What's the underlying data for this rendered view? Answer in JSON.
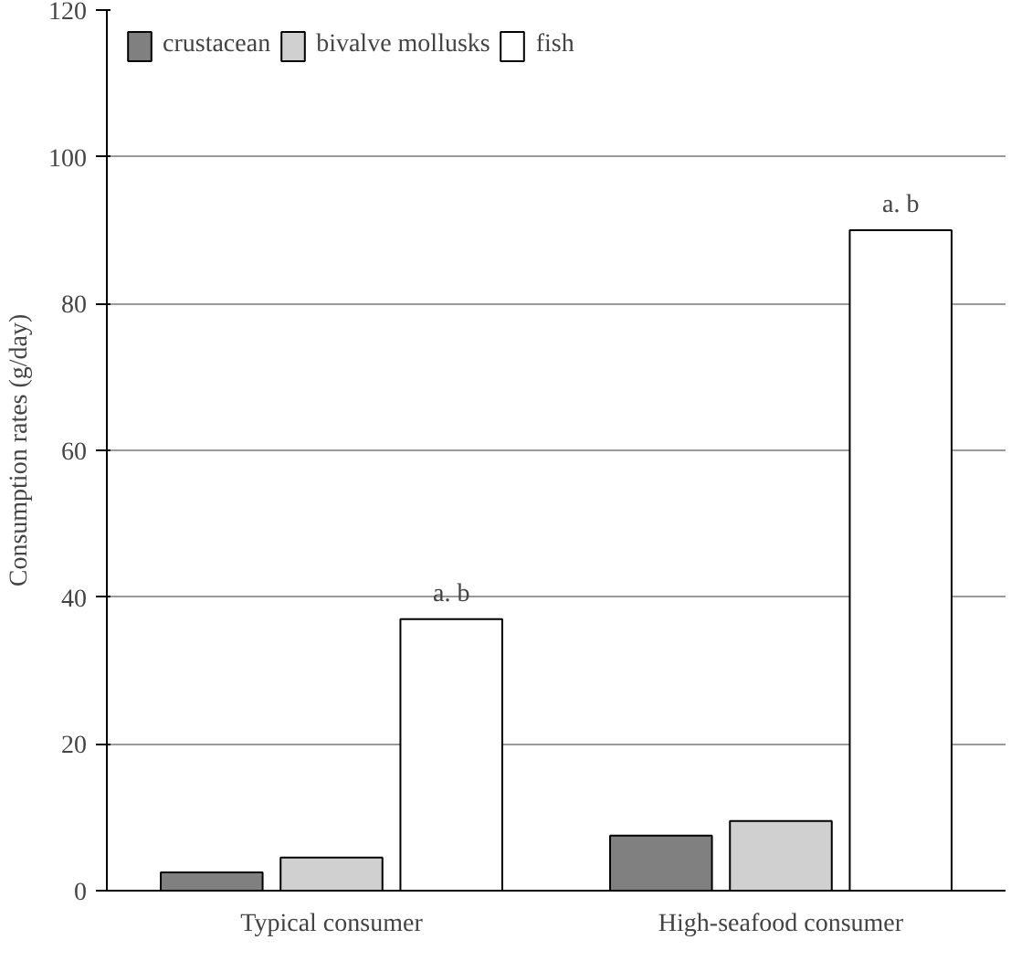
{
  "chart_data": {
    "type": "bar",
    "ylabel": "Consumption rates (g/day)",
    "categories": [
      "Typical consumer",
      "High-seafood consumer"
    ],
    "series": [
      {
        "name": "crustacean",
        "color": "#808080",
        "values": [
          2.5,
          7.5
        ]
      },
      {
        "name": "bivalve mollusks",
        "color": "#d0d0d0",
        "values": [
          4.5,
          9.5
        ]
      },
      {
        "name": "fish",
        "color": "#ffffff",
        "values": [
          37,
          90
        ]
      }
    ],
    "ylim": [
      0,
      120
    ],
    "yticks": [
      0,
      20,
      40,
      60,
      80,
      100,
      120
    ],
    "grid": "y",
    "legend": "top left",
    "annotations": [
      "a. b",
      "a. b"
    ]
  }
}
